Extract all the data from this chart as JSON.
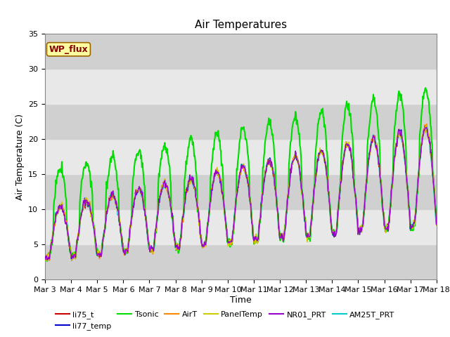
{
  "title": "Air Temperatures",
  "xlabel": "Time",
  "ylabel": "Air Temperature (C)",
  "ylim": [
    0,
    35
  ],
  "series_names": [
    "li75_t",
    "li77_temp",
    "Tsonic",
    "AirT",
    "PanelTemp",
    "NR01_PRT",
    "AM25T_PRT"
  ],
  "series_colors": [
    "#cc0000",
    "#0000cc",
    "#00dd00",
    "#ff8800",
    "#cccc00",
    "#9900cc",
    "#00cccc"
  ],
  "series_linewidths": [
    1.0,
    1.0,
    1.5,
    1.0,
    1.0,
    1.0,
    1.8
  ],
  "x_tick_labels": [
    "Mar 3",
    "Mar 4",
    "Mar 5",
    "Mar 6",
    "Mar 7",
    "Mar 8",
    "Mar 9",
    "Mar 10",
    "Mar 11",
    "Mar 12",
    "Mar 13",
    "Mar 14",
    "Mar 15",
    "Mar 16",
    "Mar 17",
    "Mar 18"
  ],
  "x_tick_positions": [
    0,
    1,
    2,
    3,
    4,
    5,
    6,
    7,
    8,
    9,
    10,
    11,
    12,
    13,
    14,
    15
  ],
  "wp_flux_label": "WP_flux",
  "plot_bg_color": "#e0e0e0",
  "band_light": "#e8e8e8",
  "band_dark": "#d0d0d0",
  "title_fontsize": 11,
  "axis_label_fontsize": 9,
  "tick_fontsize": 8,
  "legend_fontsize": 8,
  "y_bands": [
    0,
    5,
    10,
    15,
    20,
    25,
    30,
    35
  ]
}
